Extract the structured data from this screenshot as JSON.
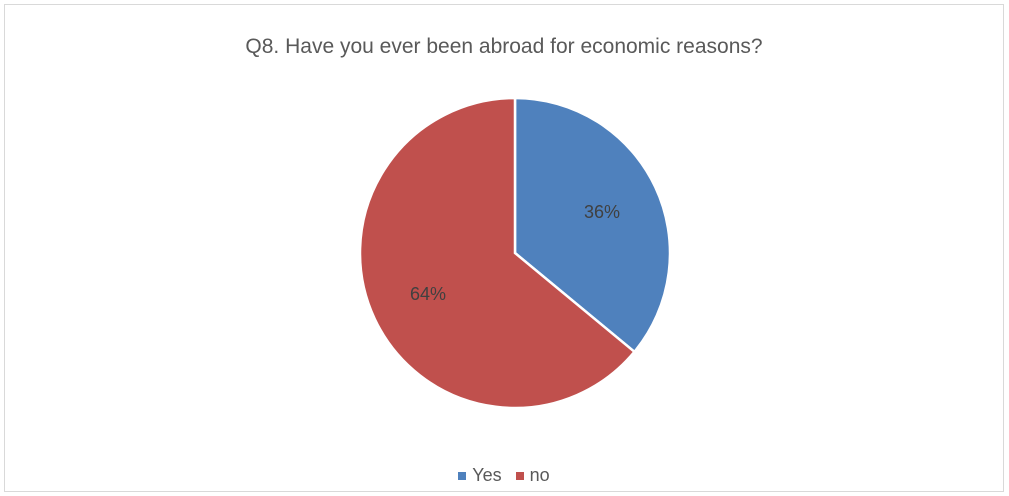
{
  "chart_data": {
    "type": "pie",
    "title": "Q8. Have you ever been abroad for economic reasons?",
    "categories": [
      "Yes",
      "no"
    ],
    "values": [
      36,
      64
    ],
    "labels": [
      "36%",
      "64%"
    ],
    "colors": [
      "#4f81bd",
      "#c0504d"
    ],
    "legend_position": "bottom"
  }
}
